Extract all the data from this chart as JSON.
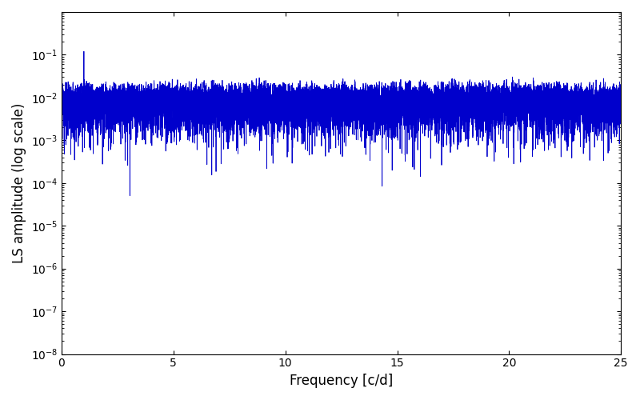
{
  "title": "",
  "xlabel": "Frequency [c/d]",
  "ylabel": "LS amplitude (log scale)",
  "xlim": [
    0,
    25
  ],
  "ylim": [
    1e-08,
    1.0
  ],
  "yscale": "log",
  "line_color": "#0000cc",
  "line_width": 0.6,
  "figsize": [
    8.0,
    5.0
  ],
  "dpi": 100,
  "yticks": [
    1e-08,
    1e-07,
    1e-06,
    1e-05,
    0.0001,
    0.001,
    0.01,
    0.1
  ],
  "xticks": [
    0,
    5,
    10,
    15,
    20,
    25
  ]
}
